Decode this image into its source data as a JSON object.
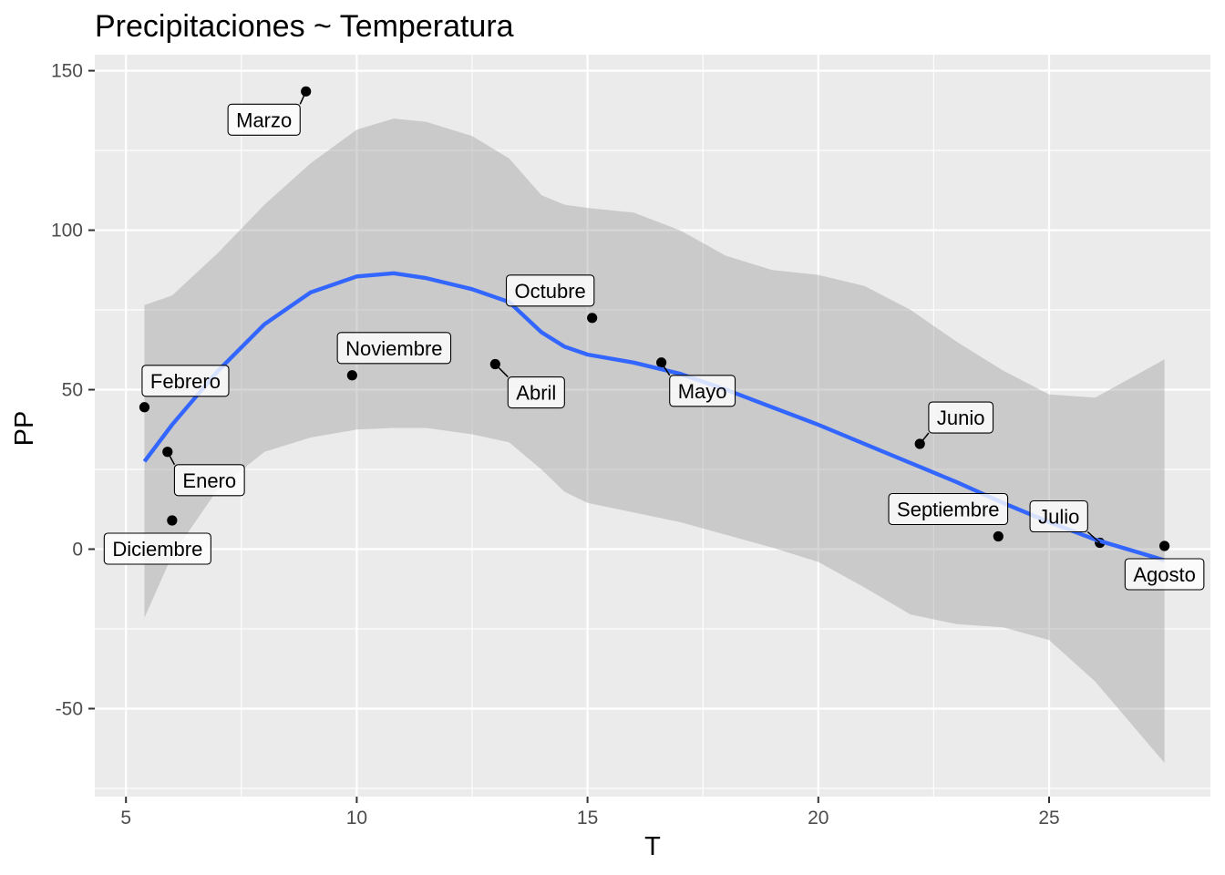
{
  "chart_data": {
    "type": "scatter",
    "title": "Precipitaciones ~ Temperatura",
    "xlabel": "T",
    "ylabel": "PP",
    "xlim": [
      4.4,
      28.3
    ],
    "ylim": [
      -78,
      155
    ],
    "x_ticks": [
      5,
      10,
      15,
      20,
      25
    ],
    "y_ticks": [
      -50,
      0,
      50,
      100,
      150
    ],
    "x_tick_labels": [
      "5",
      "10",
      "15",
      "20",
      "25"
    ],
    "y_tick_labels": [
      "-50",
      "0",
      "50",
      "100",
      "150"
    ],
    "grid": true,
    "legend": "none",
    "points": [
      {
        "label": "Enero",
        "x": 5.9,
        "y": 30.5
      },
      {
        "label": "Febrero",
        "x": 5.4,
        "y": 44.5
      },
      {
        "label": "Marzo",
        "x": 8.9,
        "y": 143.5
      },
      {
        "label": "Abril",
        "x": 13.0,
        "y": 58.0
      },
      {
        "label": "Mayo",
        "x": 16.6,
        "y": 58.5
      },
      {
        "label": "Junio",
        "x": 22.2,
        "y": 33.0
      },
      {
        "label": "Julio",
        "x": 26.1,
        "y": 2.0
      },
      {
        "label": "Agosto",
        "x": 27.5,
        "y": 1.0
      },
      {
        "label": "Septiembre",
        "x": 23.9,
        "y": 4.0
      },
      {
        "label": "Octubre",
        "x": 15.1,
        "y": 72.5
      },
      {
        "label": "Noviembre",
        "x": 9.9,
        "y": 54.5
      },
      {
        "label": "Diciembre",
        "x": 6.0,
        "y": 9.0
      }
    ],
    "smooth": {
      "method": "loess",
      "color": "#3366FF",
      "x": [
        5.4,
        6.0,
        7.0,
        8.0,
        9.0,
        10.0,
        10.8,
        11.5,
        12.5,
        13.3,
        14.0,
        14.5,
        15.0,
        16.0,
        17.0,
        18.0,
        19.0,
        20.0,
        21.0,
        22.0,
        23.0,
        24.0,
        25.0,
        26.0,
        27.5
      ],
      "fit": [
        27.5,
        39.0,
        56.0,
        70.5,
        80.5,
        85.5,
        86.5,
        85.0,
        81.5,
        77.5,
        68.0,
        63.5,
        61.0,
        58.5,
        55.0,
        50.0,
        44.5,
        39.0,
        33.0,
        27.0,
        21.0,
        14.5,
        8.5,
        3.0,
        -3.5
      ],
      "upper": [
        76.5,
        79.5,
        93.0,
        108.0,
        121.0,
        131.5,
        135.0,
        134.0,
        129.5,
        122.5,
        111.0,
        108.0,
        107.0,
        105.5,
        100.0,
        92.0,
        87.5,
        86.0,
        82.5,
        75.0,
        65.0,
        56.0,
        48.5,
        47.5,
        59.5
      ],
      "lower": [
        -21.5,
        -2.0,
        19.0,
        30.5,
        35.0,
        37.5,
        38.0,
        38.0,
        36.0,
        33.5,
        25.0,
        18.0,
        14.5,
        11.5,
        8.5,
        4.5,
        0.5,
        -4.0,
        -12.0,
        -20.5,
        -23.5,
        -24.5,
        -28.5,
        -41.5,
        -67.0
      ]
    },
    "colors": {
      "panel": "#EBEBEB",
      "grid": "#FFFFFF",
      "ribbon": "#999999",
      "point": "#000000",
      "label_border": "#000000",
      "label_fill": "#FFFFFF"
    }
  }
}
